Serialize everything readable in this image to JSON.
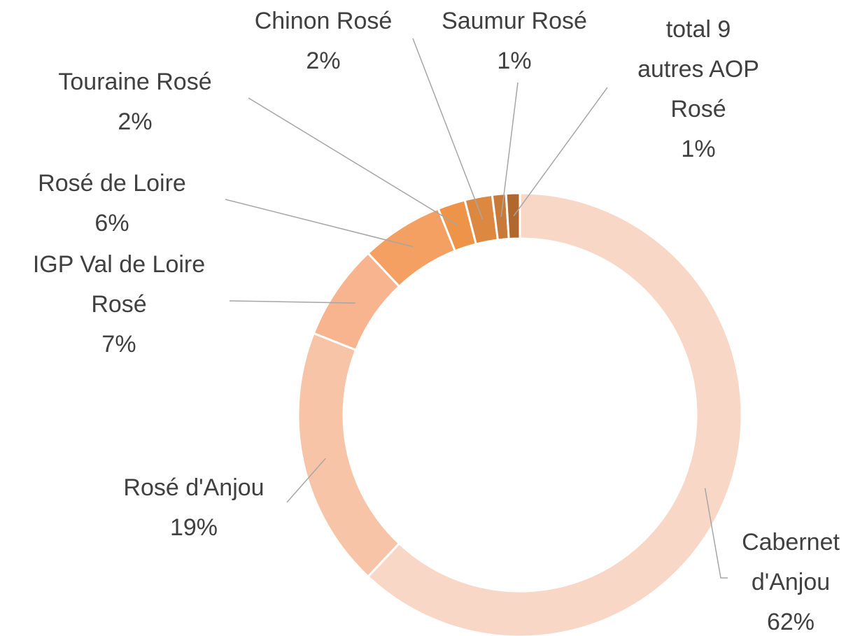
{
  "chart_data": {
    "type": "donut",
    "categories": [
      "Cabernet d'Anjou",
      "Rosé d'Anjou",
      "IGP Val de Loire Rosé",
      "Rosé de Loire",
      "Touraine Rosé",
      "Chinon Rosé",
      "Saumur Rosé",
      "total 9 autres AOP Rosé"
    ],
    "values": [
      62,
      19,
      7,
      6,
      2,
      2,
      1,
      1
    ],
    "value_labels": [
      "62%",
      "19%",
      "7%",
      "6%",
      "2%",
      "2%",
      "1%",
      "1%"
    ],
    "colors": [
      "#f9d7c6",
      "#f8c4a7",
      "#f7b48f",
      "#f4a062",
      "#ee9448",
      "#dd8841",
      "#c77a39",
      "#b0682e"
    ]
  }
}
